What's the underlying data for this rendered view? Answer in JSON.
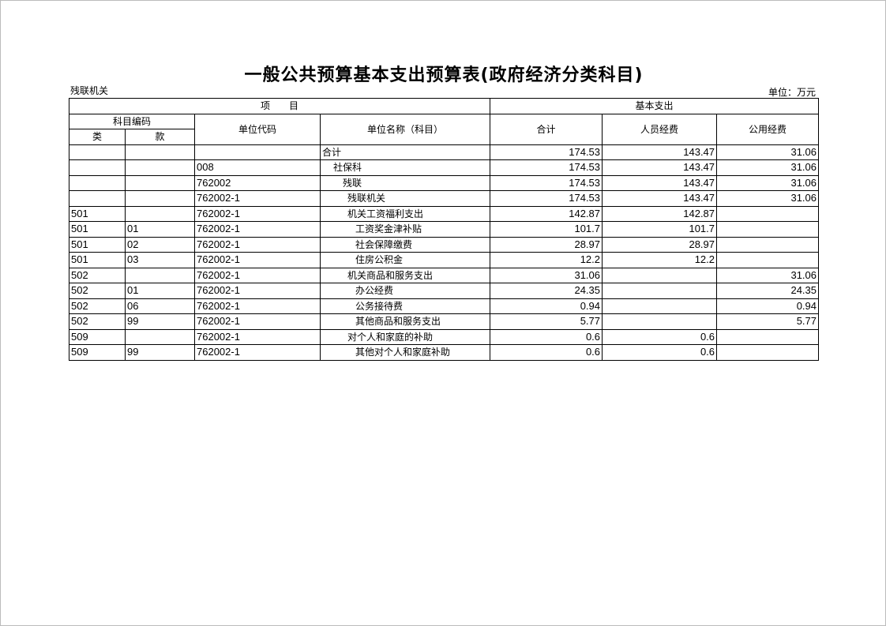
{
  "title": "一般公共预算基本支出预算表(政府经济分类科目)",
  "org": "残联机关",
  "unit": "单位：万元",
  "header": {
    "project": "项　　目",
    "basic_expense": "基本支出",
    "subject_code": "科目编码",
    "category": "类",
    "item": "款",
    "unit_code": "单位代码",
    "unit_name": "单位名称（科目）",
    "total": "合计",
    "personnel": "人员经费",
    "public": "公用经费"
  },
  "rows": [
    {
      "cat": "",
      "item": "",
      "code": "",
      "name": "合计",
      "level": 0,
      "total": "174.53",
      "personnel": "143.47",
      "public": "31.06"
    },
    {
      "cat": "",
      "item": "",
      "code": "008",
      "name": "社保科",
      "level": 1,
      "total": "174.53",
      "personnel": "143.47",
      "public": "31.06"
    },
    {
      "cat": "",
      "item": "",
      "code": "762002",
      "name": "残联",
      "level": 2,
      "total": "174.53",
      "personnel": "143.47",
      "public": "31.06"
    },
    {
      "cat": "",
      "item": "",
      "code": "762002-1",
      "name": "残联机关",
      "level": 3,
      "total": "174.53",
      "personnel": "143.47",
      "public": "31.06"
    },
    {
      "cat": "501",
      "item": "",
      "code": "762002-1",
      "name": "机关工资福利支出",
      "level": 3,
      "total": "142.87",
      "personnel": "142.87",
      "public": ""
    },
    {
      "cat": "501",
      "item": "01",
      "code": "762002-1",
      "name": "工资奖金津补贴",
      "level": 4,
      "total": "101.7",
      "personnel": "101.7",
      "public": ""
    },
    {
      "cat": "501",
      "item": "02",
      "code": "762002-1",
      "name": "社会保障缴费",
      "level": 4,
      "total": "28.97",
      "personnel": "28.97",
      "public": ""
    },
    {
      "cat": "501",
      "item": "03",
      "code": "762002-1",
      "name": "住房公积金",
      "level": 4,
      "total": "12.2",
      "personnel": "12.2",
      "public": ""
    },
    {
      "cat": "502",
      "item": "",
      "code": "762002-1",
      "name": "机关商品和服务支出",
      "level": 3,
      "total": "31.06",
      "personnel": "",
      "public": "31.06"
    },
    {
      "cat": "502",
      "item": "01",
      "code": "762002-1",
      "name": "办公经费",
      "level": 4,
      "total": "24.35",
      "personnel": "",
      "public": "24.35"
    },
    {
      "cat": "502",
      "item": "06",
      "code": "762002-1",
      "name": "公务接待费",
      "level": 4,
      "total": "0.94",
      "personnel": "",
      "public": "0.94"
    },
    {
      "cat": "502",
      "item": "99",
      "code": "762002-1",
      "name": "其他商品和服务支出",
      "level": 4,
      "total": "5.77",
      "personnel": "",
      "public": "5.77"
    },
    {
      "cat": "509",
      "item": "",
      "code": "762002-1",
      "name": "对个人和家庭的补助",
      "level": 3,
      "total": "0.6",
      "personnel": "0.6",
      "public": ""
    },
    {
      "cat": "509",
      "item": "99",
      "code": "762002-1",
      "name": "其他对个人和家庭补助",
      "level": 4,
      "total": "0.6",
      "personnel": "0.6",
      "public": ""
    }
  ]
}
